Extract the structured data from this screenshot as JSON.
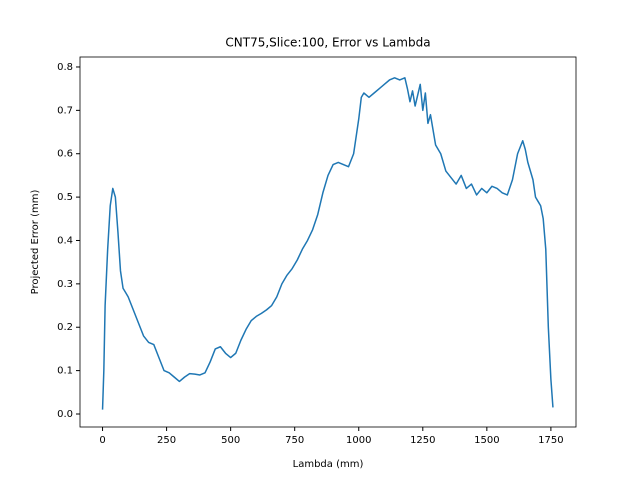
{
  "chart_data": {
    "type": "line",
    "title": "CNT75,Slice:100, Error vs Lambda",
    "xlabel": "Lambda (mm)",
    "ylabel": "Projected Error (mm)",
    "x": [
      0,
      5,
      10,
      20,
      30,
      40,
      50,
      60,
      70,
      80,
      90,
      100,
      120,
      140,
      160,
      180,
      200,
      220,
      240,
      260,
      280,
      300,
      320,
      340,
      360,
      380,
      400,
      420,
      440,
      460,
      480,
      500,
      520,
      540,
      560,
      580,
      600,
      620,
      640,
      660,
      680,
      700,
      720,
      740,
      760,
      780,
      800,
      820,
      840,
      860,
      880,
      900,
      920,
      940,
      960,
      980,
      1000,
      1010,
      1020,
      1040,
      1060,
      1080,
      1100,
      1120,
      1140,
      1160,
      1180,
      1190,
      1200,
      1210,
      1220,
      1240,
      1250,
      1260,
      1270,
      1280,
      1300,
      1320,
      1340,
      1360,
      1380,
      1400,
      1420,
      1440,
      1460,
      1480,
      1500,
      1520,
      1540,
      1560,
      1580,
      1600,
      1620,
      1640,
      1650,
      1660,
      1680,
      1690,
      1700,
      1710,
      1720,
      1730,
      1740,
      1750,
      1758
    ],
    "series": [
      {
        "name": "error",
        "color": "#1f77b4",
        "values": [
          0.01,
          0.1,
          0.25,
          0.38,
          0.48,
          0.52,
          0.5,
          0.42,
          0.33,
          0.29,
          0.28,
          0.27,
          0.24,
          0.21,
          0.18,
          0.165,
          0.16,
          0.13,
          0.1,
          0.095,
          0.085,
          0.075,
          0.085,
          0.093,
          0.092,
          0.09,
          0.095,
          0.12,
          0.15,
          0.155,
          0.14,
          0.13,
          0.14,
          0.17,
          0.195,
          0.215,
          0.225,
          0.232,
          0.24,
          0.25,
          0.27,
          0.3,
          0.32,
          0.335,
          0.355,
          0.38,
          0.4,
          0.425,
          0.46,
          0.51,
          0.55,
          0.575,
          0.58,
          0.575,
          0.57,
          0.6,
          0.68,
          0.73,
          0.74,
          0.73,
          0.74,
          0.75,
          0.76,
          0.77,
          0.775,
          0.77,
          0.775,
          0.75,
          0.72,
          0.745,
          0.71,
          0.76,
          0.7,
          0.74,
          0.67,
          0.69,
          0.62,
          0.6,
          0.56,
          0.545,
          0.53,
          0.55,
          0.52,
          0.53,
          0.505,
          0.52,
          0.51,
          0.525,
          0.52,
          0.51,
          0.505,
          0.54,
          0.6,
          0.63,
          0.61,
          0.58,
          0.54,
          0.5,
          0.49,
          0.48,
          0.45,
          0.38,
          0.2,
          0.08,
          0.015
        ]
      }
    ],
    "xlim": [
      -88,
      1848
    ],
    "ylim": [
      -0.03,
      0.823
    ],
    "xticks": [
      0,
      250,
      500,
      750,
      1000,
      1250,
      1500,
      1750
    ],
    "yticks": [
      {
        "value": 0,
        "label": "0.0"
      },
      0.1,
      0.2,
      0.3,
      0.4,
      0.5,
      0.6,
      0.7,
      0.8
    ]
  }
}
